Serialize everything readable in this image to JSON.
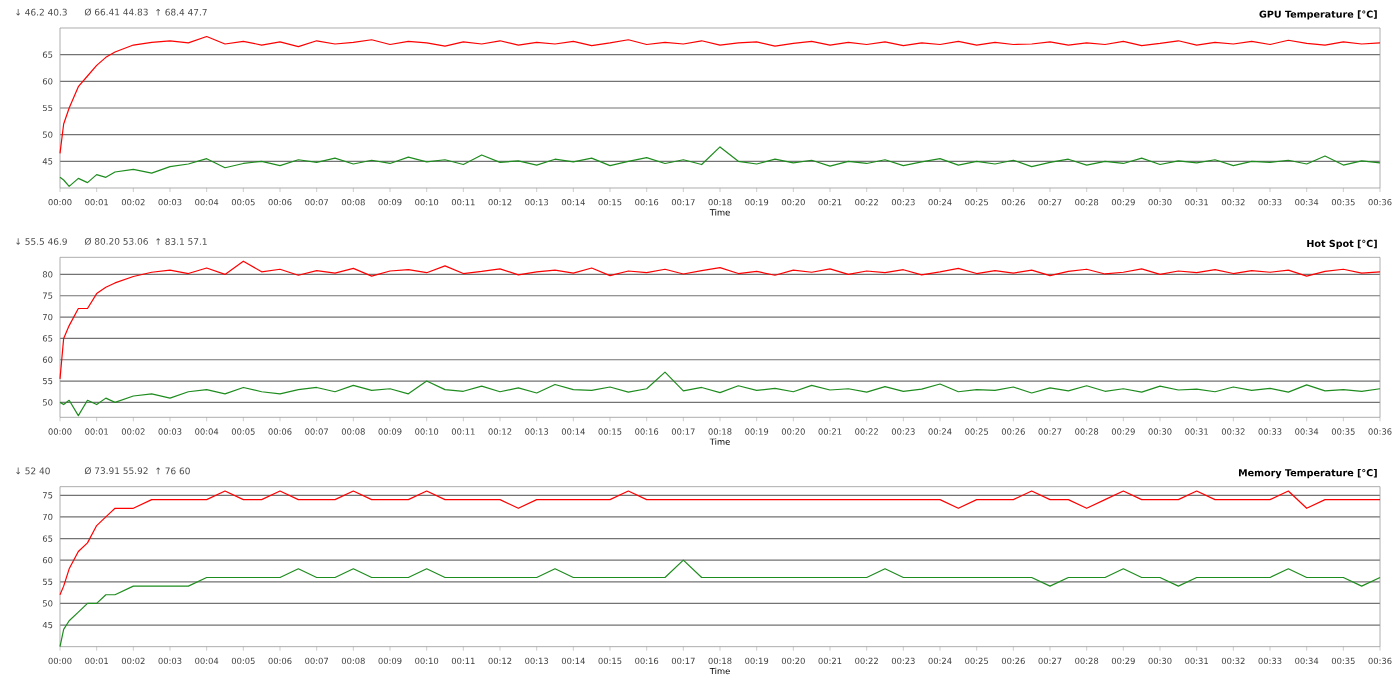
{
  "chart_data": [
    {
      "type": "line",
      "title": "GPU Temperature [°C]",
      "xlabel": "Time",
      "grid": "y",
      "marker": "none",
      "line_style": "solid",
      "annotations": [
        "↓ 46.2 40.3",
        "Ø 66.41 44.83",
        "↑ 68.4 47.7"
      ],
      "x": [
        0,
        0.1,
        0.25,
        0.5,
        0.75,
        1,
        1.25,
        1.5,
        2,
        2.5,
        3,
        3.5,
        4,
        4.5,
        5,
        5.5,
        6,
        6.5,
        7,
        7.5,
        8,
        8.5,
        9,
        9.5,
        10,
        10.5,
        11,
        11.5,
        12,
        12.5,
        13,
        13.5,
        14,
        14.5,
        15,
        15.5,
        16,
        16.5,
        17,
        17.5,
        18,
        18.5,
        19,
        19.5,
        20,
        20.5,
        21,
        21.5,
        22,
        22.5,
        23,
        23.5,
        24,
        24.5,
        25,
        25.5,
        26,
        26.5,
        27,
        27.5,
        28,
        28.5,
        29,
        29.5,
        30,
        30.5,
        31,
        31.5,
        32,
        32.5,
        33,
        33.5,
        34,
        34.5,
        35,
        35.5,
        36
      ],
      "xlim": [
        0,
        36
      ],
      "ylim": [
        40,
        70
      ],
      "yticks": [
        45,
        50,
        55,
        60,
        65
      ],
      "xticks": [
        {
          "value": 0,
          "label": "00:00"
        },
        {
          "value": 1,
          "label": "00:01"
        },
        {
          "value": 2,
          "label": "00:02"
        },
        {
          "value": 3,
          "label": "00:03"
        },
        {
          "value": 4,
          "label": "00:04"
        },
        {
          "value": 5,
          "label": "00:05"
        },
        {
          "value": 6,
          "label": "00:06"
        },
        {
          "value": 7,
          "label": "00:07"
        },
        {
          "value": 8,
          "label": "00:08"
        },
        {
          "value": 9,
          "label": "00:09"
        },
        {
          "value": 10,
          "label": "00:10"
        },
        {
          "value": 11,
          "label": "00:11"
        },
        {
          "value": 12,
          "label": "00:12"
        },
        {
          "value": 13,
          "label": "00:13"
        },
        {
          "value": 14,
          "label": "00:14"
        },
        {
          "value": 15,
          "label": "00:15"
        },
        {
          "value": 16,
          "label": "00:16"
        },
        {
          "value": 17,
          "label": "00:17"
        },
        {
          "value": 18,
          "label": "00:18"
        },
        {
          "value": 19,
          "label": "00:19"
        },
        {
          "value": 20,
          "label": "00:20"
        },
        {
          "value": 21,
          "label": "00:21"
        },
        {
          "value": 22,
          "label": "00:22"
        },
        {
          "value": 23,
          "label": "00:23"
        },
        {
          "value": 24,
          "label": "00:24"
        },
        {
          "value": 25,
          "label": "00:25"
        },
        {
          "value": 26,
          "label": "00:26"
        },
        {
          "value": 27,
          "label": "00:27"
        },
        {
          "value": 28,
          "label": "00:28"
        },
        {
          "value": 29,
          "label": "00:29"
        },
        {
          "value": 30,
          "label": "00:30"
        },
        {
          "value": 31,
          "label": "00:31"
        },
        {
          "value": 32,
          "label": "00:32"
        },
        {
          "value": 33,
          "label": "00:33"
        },
        {
          "value": 34,
          "label": "00:34"
        },
        {
          "value": 35,
          "label": "00:35"
        },
        {
          "value": 36,
          "label": "00:36"
        }
      ],
      "series": [
        {
          "color": "#ff0000",
          "values": [
            46.5,
            52,
            55,
            59,
            61,
            63,
            64.5,
            65.5,
            66.8,
            67.3,
            67.6,
            67.2,
            68.4,
            67.0,
            67.5,
            66.8,
            67.4,
            66.5,
            67.6,
            67.0,
            67.3,
            67.8,
            66.9,
            67.5,
            67.2,
            66.6,
            67.4,
            67.0,
            67.6,
            66.8,
            67.3,
            67.0,
            67.5,
            66.7,
            67.2,
            67.8,
            66.9,
            67.3,
            67.0,
            67.6,
            66.8,
            67.2,
            67.4,
            66.6,
            67.1,
            67.5,
            66.8,
            67.3,
            66.9,
            67.4,
            66.7,
            67.2,
            66.9,
            67.5,
            66.8,
            67.3,
            66.9,
            67.0,
            67.4,
            66.8,
            67.2,
            66.9,
            67.5,
            66.7,
            67.1,
            67.6,
            66.8,
            67.3,
            67.0,
            67.5,
            66.9,
            67.7,
            67.1,
            66.8,
            67.4,
            67.0,
            67.2
          ]
        },
        {
          "color": "#1e8c1e",
          "values": [
            42.0,
            41.5,
            40.3,
            41.8,
            41.0,
            42.5,
            42.0,
            43.0,
            43.5,
            42.8,
            44.0,
            44.5,
            45.5,
            43.8,
            44.6,
            45.0,
            44.2,
            45.3,
            44.8,
            45.6,
            44.5,
            45.2,
            44.6,
            45.8,
            44.9,
            45.3,
            44.4,
            46.2,
            44.8,
            45.1,
            44.3,
            45.4,
            44.9,
            45.6,
            44.2,
            45.0,
            45.7,
            44.6,
            45.3,
            44.4,
            47.7,
            45.0,
            44.5,
            45.4,
            44.7,
            45.2,
            44.1,
            45.0,
            44.6,
            45.3,
            44.2,
            44.9,
            45.5,
            44.3,
            45.0,
            44.5,
            45.2,
            44.0,
            44.8,
            45.4,
            44.3,
            45.0,
            44.6,
            45.6,
            44.4,
            45.1,
            44.7,
            45.3,
            44.2,
            45.0,
            44.8,
            45.2,
            44.5,
            46.0,
            44.3,
            45.1,
            44.7
          ]
        }
      ]
    },
    {
      "type": "line",
      "title": "Hot Spot [°C]",
      "xlabel": "Time",
      "grid": "y",
      "marker": "none",
      "line_style": "solid",
      "annotations": [
        "↓ 55.5 46.9",
        "Ø 80.20 53.06",
        "↑ 83.1 57.1"
      ],
      "x": [
        0,
        0.1,
        0.25,
        0.5,
        0.75,
        1,
        1.25,
        1.5,
        2,
        2.5,
        3,
        3.5,
        4,
        4.5,
        5,
        5.5,
        6,
        6.5,
        7,
        7.5,
        8,
        8.5,
        9,
        9.5,
        10,
        10.5,
        11,
        11.5,
        12,
        12.5,
        13,
        13.5,
        14,
        14.5,
        15,
        15.5,
        16,
        16.5,
        17,
        17.5,
        18,
        18.5,
        19,
        19.5,
        20,
        20.5,
        21,
        21.5,
        22,
        22.5,
        23,
        23.5,
        24,
        24.5,
        25,
        25.5,
        26,
        26.5,
        27,
        27.5,
        28,
        28.5,
        29,
        29.5,
        30,
        30.5,
        31,
        31.5,
        32,
        32.5,
        33,
        33.5,
        34,
        34.5,
        35,
        35.5,
        36
      ],
      "xlim": [
        0,
        36
      ],
      "ylim": [
        46.5,
        84
      ],
      "yticks": [
        50,
        55,
        60,
        65,
        70,
        75,
        80
      ],
      "xticks": [
        {
          "value": 0,
          "label": "00:00"
        },
        {
          "value": 1,
          "label": "00:01"
        },
        {
          "value": 2,
          "label": "00:02"
        },
        {
          "value": 3,
          "label": "00:03"
        },
        {
          "value": 4,
          "label": "00:04"
        },
        {
          "value": 5,
          "label": "00:05"
        },
        {
          "value": 6,
          "label": "00:06"
        },
        {
          "value": 7,
          "label": "00:07"
        },
        {
          "value": 8,
          "label": "00:08"
        },
        {
          "value": 9,
          "label": "00:09"
        },
        {
          "value": 10,
          "label": "00:10"
        },
        {
          "value": 11,
          "label": "00:11"
        },
        {
          "value": 12,
          "label": "00:12"
        },
        {
          "value": 13,
          "label": "00:13"
        },
        {
          "value": 14,
          "label": "00:14"
        },
        {
          "value": 15,
          "label": "00:15"
        },
        {
          "value": 16,
          "label": "00:16"
        },
        {
          "value": 17,
          "label": "00:17"
        },
        {
          "value": 18,
          "label": "00:18"
        },
        {
          "value": 19,
          "label": "00:19"
        },
        {
          "value": 20,
          "label": "00:20"
        },
        {
          "value": 21,
          "label": "00:21"
        },
        {
          "value": 22,
          "label": "00:22"
        },
        {
          "value": 23,
          "label": "00:23"
        },
        {
          "value": 24,
          "label": "00:24"
        },
        {
          "value": 25,
          "label": "00:25"
        },
        {
          "value": 26,
          "label": "00:26"
        },
        {
          "value": 27,
          "label": "00:27"
        },
        {
          "value": 28,
          "label": "00:28"
        },
        {
          "value": 29,
          "label": "00:29"
        },
        {
          "value": 30,
          "label": "00:30"
        },
        {
          "value": 31,
          "label": "00:31"
        },
        {
          "value": 32,
          "label": "00:32"
        },
        {
          "value": 33,
          "label": "00:33"
        },
        {
          "value": 34,
          "label": "00:34"
        },
        {
          "value": 35,
          "label": "00:35"
        },
        {
          "value": 36,
          "label": "00:36"
        }
      ],
      "series": [
        {
          "color": "#ff0000",
          "values": [
            55.5,
            65,
            68,
            72,
            72,
            75.5,
            77,
            78,
            79.5,
            80.5,
            81.0,
            80.2,
            81.5,
            80.0,
            83.1,
            80.6,
            81.2,
            79.8,
            80.9,
            80.3,
            81.4,
            79.6,
            80.8,
            81.1,
            80.4,
            82.0,
            80.2,
            80.7,
            81.3,
            79.9,
            80.6,
            81.0,
            80.3,
            81.5,
            79.7,
            80.8,
            80.4,
            81.2,
            80.1,
            80.9,
            81.6,
            80.2,
            80.7,
            79.8,
            81.0,
            80.5,
            81.3,
            80.0,
            80.8,
            80.4,
            81.1,
            79.9,
            80.6,
            81.4,
            80.2,
            80.9,
            80.3,
            81.0,
            79.7,
            80.7,
            81.2,
            80.1,
            80.5,
            81.3,
            80.0,
            80.8,
            80.4,
            81.1,
            80.2,
            80.9,
            80.5,
            81.0,
            79.6,
            80.7,
            81.2,
            80.3,
            80.6
          ]
        },
        {
          "color": "#1e8c1e",
          "values": [
            50.0,
            49.5,
            50.5,
            46.9,
            50.5,
            49.5,
            51.0,
            50.0,
            51.5,
            52.0,
            51.0,
            52.5,
            53.0,
            52.0,
            53.5,
            52.5,
            52.0,
            53.0,
            53.5,
            52.5,
            54.0,
            52.8,
            53.2,
            52.0,
            55.0,
            53.0,
            52.6,
            53.8,
            52.5,
            53.4,
            52.2,
            54.2,
            53.0,
            52.8,
            53.6,
            52.4,
            53.2,
            57.1,
            52.7,
            53.5,
            52.3,
            53.9,
            52.8,
            53.3,
            52.5,
            54.0,
            52.9,
            53.2,
            52.4,
            53.7,
            52.6,
            53.1,
            54.3,
            52.5,
            53.0,
            52.8,
            53.6,
            52.2,
            53.4,
            52.7,
            53.9,
            52.6,
            53.2,
            52.4,
            53.8,
            52.9,
            53.1,
            52.5,
            53.6,
            52.8,
            53.3,
            52.4,
            54.1,
            52.7,
            53.0,
            52.6,
            53.2
          ]
        }
      ]
    },
    {
      "type": "line",
      "title": "Memory Temperature [°C]",
      "xlabel": "Time",
      "grid": "y",
      "marker": "none",
      "line_style": "solid",
      "annotations": [
        "↓ 52 40",
        "Ø 73.91 55.92",
        "↑ 76 60"
      ],
      "x": [
        0,
        0.1,
        0.25,
        0.5,
        0.75,
        1,
        1.25,
        1.5,
        2,
        2.5,
        3,
        3.5,
        4,
        4.5,
        5,
        5.5,
        6,
        6.5,
        7,
        7.5,
        8,
        8.5,
        9,
        9.5,
        10,
        10.5,
        11,
        11.5,
        12,
        12.5,
        13,
        13.5,
        14,
        14.5,
        15,
        15.5,
        16,
        16.5,
        17,
        17.5,
        18,
        18.5,
        19,
        19.5,
        20,
        20.5,
        21,
        21.5,
        22,
        22.5,
        23,
        23.5,
        24,
        24.5,
        25,
        25.5,
        26,
        26.5,
        27,
        27.5,
        28,
        28.5,
        29,
        29.5,
        30,
        30.5,
        31,
        31.5,
        32,
        32.5,
        33,
        33.5,
        34,
        34.5,
        35,
        35.5,
        36
      ],
      "xlim": [
        0,
        36
      ],
      "ylim": [
        40,
        77
      ],
      "yticks": [
        45,
        50,
        55,
        60,
        65,
        70,
        75
      ],
      "xticks": [
        {
          "value": 0,
          "label": "00:00"
        },
        {
          "value": 1,
          "label": "00:01"
        },
        {
          "value": 2,
          "label": "00:02"
        },
        {
          "value": 3,
          "label": "00:03"
        },
        {
          "value": 4,
          "label": "00:04"
        },
        {
          "value": 5,
          "label": "00:05"
        },
        {
          "value": 6,
          "label": "00:06"
        },
        {
          "value": 7,
          "label": "00:07"
        },
        {
          "value": 8,
          "label": "00:08"
        },
        {
          "value": 9,
          "label": "00:09"
        },
        {
          "value": 10,
          "label": "00:10"
        },
        {
          "value": 11,
          "label": "00:11"
        },
        {
          "value": 12,
          "label": "00:12"
        },
        {
          "value": 13,
          "label": "00:13"
        },
        {
          "value": 14,
          "label": "00:14"
        },
        {
          "value": 15,
          "label": "00:15"
        },
        {
          "value": 16,
          "label": "00:16"
        },
        {
          "value": 17,
          "label": "00:17"
        },
        {
          "value": 18,
          "label": "00:18"
        },
        {
          "value": 19,
          "label": "00:19"
        },
        {
          "value": 20,
          "label": "00:20"
        },
        {
          "value": 21,
          "label": "00:21"
        },
        {
          "value": 22,
          "label": "00:22"
        },
        {
          "value": 23,
          "label": "00:23"
        },
        {
          "value": 24,
          "label": "00:24"
        },
        {
          "value": 25,
          "label": "00:25"
        },
        {
          "value": 26,
          "label": "00:26"
        },
        {
          "value": 27,
          "label": "00:27"
        },
        {
          "value": 28,
          "label": "00:28"
        },
        {
          "value": 29,
          "label": "00:29"
        },
        {
          "value": 30,
          "label": "00:30"
        },
        {
          "value": 31,
          "label": "00:31"
        },
        {
          "value": 32,
          "label": "00:32"
        },
        {
          "value": 33,
          "label": "00:33"
        },
        {
          "value": 34,
          "label": "00:34"
        },
        {
          "value": 35,
          "label": "00:35"
        },
        {
          "value": 36,
          "label": "00:36"
        }
      ],
      "series": [
        {
          "color": "#ff0000",
          "values": [
            52,
            54,
            58,
            62,
            64,
            68,
            70,
            72,
            72,
            74,
            74,
            74,
            74,
            76,
            74,
            74,
            76,
            74,
            74,
            74,
            76,
            74,
            74,
            74,
            76,
            74,
            74,
            74,
            74,
            72,
            74,
            74,
            74,
            74,
            74,
            76,
            74,
            74,
            74,
            74,
            74,
            74,
            74,
            74,
            74,
            74,
            74,
            74,
            74,
            74,
            74,
            74,
            74,
            72,
            74,
            74,
            74,
            76,
            74,
            74,
            72,
            74,
            76,
            74,
            74,
            74,
            76,
            74,
            74,
            74,
            74,
            76,
            72,
            74,
            74,
            74,
            74
          ]
        },
        {
          "color": "#1e8c1e",
          "values": [
            40,
            44,
            46,
            48,
            50,
            50,
            52,
            52,
            54,
            54,
            54,
            54,
            56,
            56,
            56,
            56,
            56,
            58,
            56,
            56,
            58,
            56,
            56,
            56,
            58,
            56,
            56,
            56,
            56,
            56,
            56,
            58,
            56,
            56,
            56,
            56,
            56,
            56,
            60,
            56,
            56,
            56,
            56,
            56,
            56,
            56,
            56,
            56,
            56,
            58,
            56,
            56,
            56,
            56,
            56,
            56,
            56,
            56,
            54,
            56,
            56,
            56,
            58,
            56,
            56,
            54,
            56,
            56,
            56,
            56,
            56,
            58,
            56,
            56,
            56,
            54,
            56
          ]
        }
      ]
    }
  ]
}
